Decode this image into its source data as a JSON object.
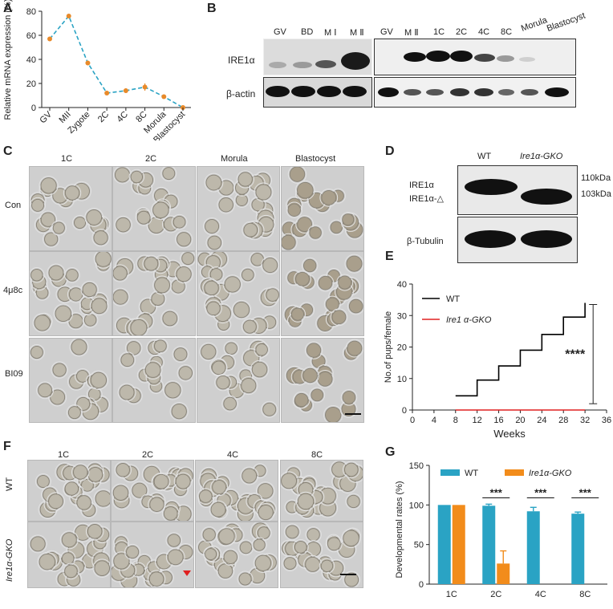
{
  "panels": {
    "A": {
      "label": "A",
      "chart_data": {
        "type": "line",
        "categories": [
          "GV",
          "MII",
          "Zygote",
          "2C",
          "4C",
          "8C",
          "Morula",
          "Blastocyst"
        ],
        "values": [
          57,
          76,
          37,
          12,
          14,
          17,
          9,
          0
        ],
        "errors": [
          0,
          1,
          1,
          1,
          2,
          3,
          1,
          0
        ],
        "ylabel": "Relative mRNA expression (%)",
        "ylim": [
          0,
          80
        ],
        "yticks": [
          0,
          20,
          40,
          60,
          80
        ],
        "colors": {
          "line": "#2aa3c4",
          "marker": "#e88a2a"
        }
      }
    },
    "B": {
      "label": "B",
      "left_lanes": [
        "GV",
        "BD",
        "M Ⅰ",
        "M Ⅱ"
      ],
      "right_lanes": [
        "GV",
        "M Ⅱ",
        "1C",
        "2C",
        "4C",
        "8C",
        "Morula",
        "Blastocyst"
      ],
      "row_labels": [
        "IRE1α",
        "β-actin"
      ]
    },
    "C": {
      "label": "C",
      "columns": [
        "1C",
        "2C",
        "Morula",
        "Blastocyst"
      ],
      "rows": [
        "Con",
        "4μ8c",
        "BI09"
      ]
    },
    "D": {
      "label": "D",
      "lanes": [
        "WT",
        "Ire1α-GKO"
      ],
      "band_labels": [
        "IRE1α",
        "IRE1α-△"
      ],
      "sizes": [
        "110kDa",
        "103kDa"
      ],
      "loading": "β-Tubulin"
    },
    "E": {
      "label": "E",
      "chart_data": {
        "type": "line",
        "xlabel": "Weeks",
        "ylabel": "No.of pups/female",
        "xlim": [
          0,
          36
        ],
        "ylim": [
          0,
          40
        ],
        "xticks": [
          0,
          4,
          8,
          12,
          16,
          20,
          24,
          28,
          32,
          36
        ],
        "yticks": [
          0,
          10,
          20,
          30,
          40
        ],
        "series": [
          {
            "name": "WT",
            "color": "#000000",
            "x": [
              8,
              12,
              12,
              16,
              16,
              20,
              20,
              24,
              24,
              28,
              28,
              32,
              32
            ],
            "y": [
              4.5,
              4.5,
              9.5,
              9.5,
              14,
              14,
              19,
              19,
              24,
              24,
              29.5,
              29.5,
              34
            ]
          },
          {
            "name": "Ire1 α-GKO",
            "color": "#e02020",
            "x": [
              8,
              32
            ],
            "y": [
              0,
              0
            ]
          }
        ],
        "annotation": "****",
        "bracket_y": [
          2,
          33.5
        ]
      }
    },
    "F": {
      "label": "F",
      "columns": [
        "1C",
        "2C",
        "4C",
        "8C"
      ],
      "rows": [
        "WT",
        "Ire1α-GKO"
      ]
    },
    "G": {
      "label": "G",
      "chart_data": {
        "type": "bar",
        "categories": [
          "1C",
          "2C",
          "4C",
          "8C"
        ],
        "ylabel": "Developmental rates (%)",
        "ylim": [
          0,
          150
        ],
        "yticks": [
          0,
          50,
          100,
          150
        ],
        "series": [
          {
            "name": "WT",
            "color": "#2aa3c4",
            "values": [
              100,
              99,
              92,
              89
            ],
            "errors": [
              0,
              2,
              5,
              2
            ]
          },
          {
            "name": "Ire1α-GKO",
            "color": "#f28c1b",
            "values": [
              100,
              26,
              0,
              0
            ],
            "errors": [
              0,
              16,
              0,
              0
            ]
          }
        ],
        "annotations": [
          "***",
          "***",
          "***"
        ]
      }
    }
  }
}
